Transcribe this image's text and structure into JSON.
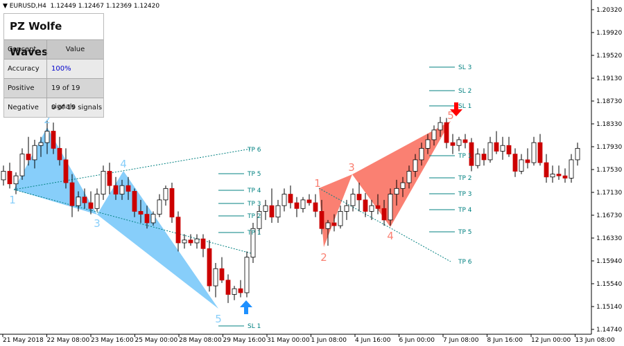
{
  "header": {
    "symbol": "EURUSD,H4",
    "quote": "1.12449 1.12467 1.12369 1.12420"
  },
  "panel": {
    "title": "PZ Wolfe Waves",
    "col_concept": "Concept",
    "col_value": "Value",
    "rows": [
      {
        "concept": "Accuracy",
        "value": "100%"
      },
      {
        "concept": "Positive",
        "value": "19 of 19 signals"
      },
      {
        "concept": "Negative",
        "value": "0 of 19 signals"
      }
    ],
    "accuracy_color": "#0000cc"
  },
  "colors": {
    "bull_wave": "#87cefa",
    "bear_wave": "#fa8072",
    "up_arrow": "#1e90ff",
    "down_arrow": "#ff0000",
    "levels": "#008080",
    "bear_candle": "#cc0000"
  },
  "price_axis": [
    "1.20320",
    "1.19920",
    "1.19520",
    "1.19130",
    "1.18730",
    "1.18330",
    "1.17930",
    "1.17530",
    "1.17130",
    "1.16730",
    "1.16330",
    "1.15940",
    "1.15540",
    "1.15140",
    "1.14740"
  ],
  "time_axis": [
    "21 May 2018",
    "22 May 08:00",
    "23 May 16:00",
    "25 May 00:00",
    "28 May 08:00",
    "29 May 16:00",
    "31 May 00:00",
    "1 Jun 08:00",
    "4 Jun 16:00",
    "6 Jun 00:00",
    "7 Jun 08:00",
    "8 Jun 16:00",
    "12 Jun 00:00",
    "13 Jun 08:00"
  ],
  "bull_labels": [
    "1",
    "2",
    "3",
    "4",
    "5"
  ],
  "bear_labels": [
    "1",
    "2",
    "3",
    "4",
    "5"
  ],
  "bull_levels": [
    "TP 6",
    "TP 5",
    "TP 4",
    "TP 3",
    "TP 2",
    "TP 1",
    "SL 1"
  ],
  "bear_levels": [
    "SL 3",
    "SL 2",
    "SL 1",
    "TP 1",
    "TP 2",
    "TP 3",
    "TP 4",
    "TP 5",
    "TP 6"
  ],
  "candles": [
    [
      1.1735,
      1.176,
      1.1725,
      1.175
    ],
    [
      1.175,
      1.1765,
      1.172,
      1.1728
    ],
    [
      1.1728,
      1.1748,
      1.171,
      1.1742
    ],
    [
      1.1742,
      1.179,
      1.1735,
      1.178
    ],
    [
      1.178,
      1.181,
      1.176,
      1.177
    ],
    [
      1.177,
      1.1805,
      1.1755,
      1.1795
    ],
    [
      1.1795,
      1.181,
      1.1775,
      1.18
    ],
    [
      1.18,
      1.184,
      1.178,
      1.182
    ],
    [
      1.182,
      1.1835,
      1.178,
      1.179
    ],
    [
      1.179,
      1.181,
      1.176,
      1.177
    ],
    [
      1.177,
      1.179,
      1.172,
      1.173
    ],
    [
      1.173,
      1.1745,
      1.167,
      1.169
    ],
    [
      1.169,
      1.1715,
      1.168,
      1.1705
    ],
    [
      1.1705,
      1.172,
      1.1685,
      1.1695
    ],
    [
      1.1695,
      1.1715,
      1.1675,
      1.1685
    ],
    [
      1.1685,
      1.172,
      1.168,
      1.171
    ],
    [
      1.171,
      1.176,
      1.17,
      1.175
    ],
    [
      1.175,
      1.1765,
      1.171,
      1.1725
    ],
    [
      1.1725,
      1.174,
      1.17,
      1.171
    ],
    [
      1.171,
      1.1735,
      1.17,
      1.1725
    ],
    [
      1.1725,
      1.174,
      1.17,
      1.1715
    ],
    [
      1.1715,
      1.172,
      1.167,
      1.168
    ],
    [
      1.168,
      1.17,
      1.166,
      1.1675
    ],
    [
      1.1675,
      1.169,
      1.165,
      1.166
    ],
    [
      1.166,
      1.168,
      1.1655,
      1.1675
    ],
    [
      1.1675,
      1.171,
      1.167,
      1.17
    ],
    [
      1.17,
      1.1725,
      1.169,
      1.172
    ],
    [
      1.172,
      1.173,
      1.166,
      1.167
    ],
    [
      1.167,
      1.168,
      1.161,
      1.1625
    ],
    [
      1.1625,
      1.164,
      1.1615,
      1.163
    ],
    [
      1.163,
      1.164,
      1.162,
      1.1625
    ],
    [
      1.1625,
      1.164,
      1.1615,
      1.1632
    ],
    [
      1.1632,
      1.164,
      1.16,
      1.1615
    ],
    [
      1.1615,
      1.163,
      1.154,
      1.155
    ],
    [
      1.155,
      1.159,
      1.153,
      1.158
    ],
    [
      1.158,
      1.16,
      1.1555,
      1.156
    ],
    [
      1.156,
      1.157,
      1.152,
      1.1535
    ],
    [
      1.1535,
      1.155,
      1.1525,
      1.1545
    ],
    [
      1.1545,
      1.156,
      1.153,
      1.1538
    ],
    [
      1.1538,
      1.161,
      1.153,
      1.16
    ],
    [
      1.16,
      1.166,
      1.159,
      1.165
    ],
    [
      1.165,
      1.169,
      1.164,
      1.168
    ],
    [
      1.168,
      1.17,
      1.1665,
      1.169
    ],
    [
      1.169,
      1.172,
      1.166,
      1.167
    ],
    [
      1.167,
      1.17,
      1.166,
      1.169
    ],
    [
      1.169,
      1.172,
      1.168,
      1.171
    ],
    [
      1.171,
      1.1725,
      1.1685,
      1.1695
    ],
    [
      1.1695,
      1.1705,
      1.167,
      1.1685
    ],
    [
      1.1685,
      1.1705,
      1.1678,
      1.17
    ],
    [
      1.17,
      1.171,
      1.169,
      1.1695
    ],
    [
      1.1695,
      1.171,
      1.167,
      1.168
    ],
    [
      1.168,
      1.17,
      1.164,
      1.165
    ],
    [
      1.165,
      1.1665,
      1.162,
      1.166
    ],
    [
      1.166,
      1.1675,
      1.1645,
      1.1655
    ],
    [
      1.1655,
      1.169,
      1.165,
      1.168
    ],
    [
      1.168,
      1.17,
      1.1665,
      1.169
    ],
    [
      1.169,
      1.172,
      1.168,
      1.171
    ],
    [
      1.171,
      1.173,
      1.168,
      1.17
    ],
    [
      1.17,
      1.1712,
      1.167,
      1.168
    ],
    [
      1.168,
      1.17,
      1.1665,
      1.169
    ],
    [
      1.169,
      1.171,
      1.1675,
      1.1685
    ],
    [
      1.1685,
      1.17,
      1.1655,
      1.1665
    ],
    [
      1.1665,
      1.172,
      1.1655,
      1.171
    ],
    [
      1.171,
      1.1735,
      1.169,
      1.172
    ],
    [
      1.172,
      1.174,
      1.1705,
      1.173
    ],
    [
      1.173,
      1.176,
      1.172,
      1.175
    ],
    [
      1.175,
      1.178,
      1.174,
      1.177
    ],
    [
      1.177,
      1.18,
      1.176,
      1.179
    ],
    [
      1.179,
      1.1815,
      1.178,
      1.1805
    ],
    [
      1.1805,
      1.183,
      1.1795,
      1.1822
    ],
    [
      1.1822,
      1.1845,
      1.181,
      1.1835
    ],
    [
      1.1835,
      1.1843,
      1.179,
      1.18
    ],
    [
      1.18,
      1.1815,
      1.178,
      1.1795
    ],
    [
      1.1795,
      1.181,
      1.1785,
      1.1805
    ],
    [
      1.1805,
      1.1815,
      1.179,
      1.18
    ],
    [
      1.18,
      1.1808,
      1.175,
      1.176
    ],
    [
      1.176,
      1.179,
      1.1755,
      1.178
    ],
    [
      1.178,
      1.179,
      1.176,
      1.177
    ],
    [
      1.177,
      1.181,
      1.1765,
      1.18
    ],
    [
      1.18,
      1.182,
      1.178,
      1.1785
    ],
    [
      1.1785,
      1.181,
      1.177,
      1.1795
    ],
    [
      1.1795,
      1.181,
      1.1775,
      1.178
    ],
    [
      1.178,
      1.179,
      1.174,
      1.175
    ],
    [
      1.175,
      1.178,
      1.1745,
      1.177
    ],
    [
      1.177,
      1.179,
      1.1755,
      1.1765
    ],
    [
      1.1765,
      1.181,
      1.176,
      1.18
    ],
    [
      1.18,
      1.1815,
      1.176,
      1.1765
    ],
    [
      1.1765,
      1.178,
      1.173,
      1.174
    ],
    [
      1.174,
      1.176,
      1.173,
      1.1745
    ],
    [
      1.1745,
      1.176,
      1.1735,
      1.1742
    ],
    [
      1.1742,
      1.1755,
      1.173,
      1.1738
    ],
    [
      1.1738,
      1.178,
      1.173,
      1.177
    ],
    [
      1.177,
      1.18,
      1.176,
      1.179
    ]
  ]
}
